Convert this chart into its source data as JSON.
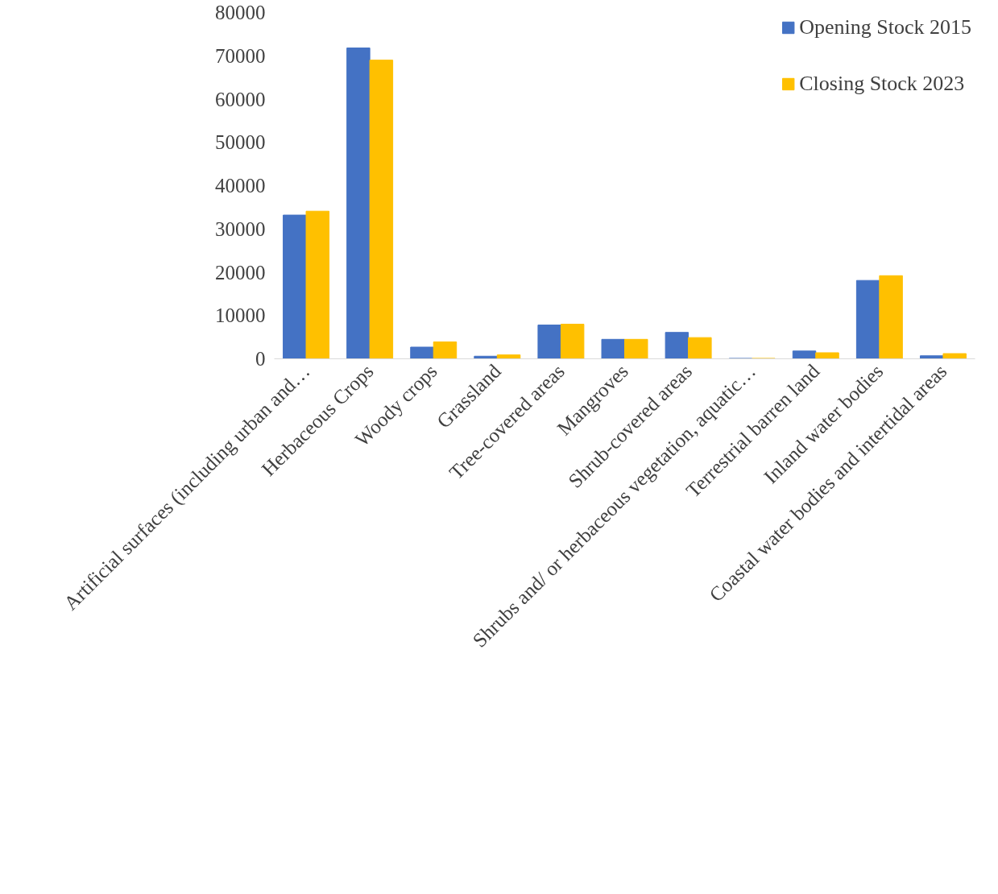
{
  "chart_data": {
    "type": "bar",
    "categories": [
      "Artificial surfaces (including urban and…",
      "Herbaceous Crops",
      "Woody crops",
      "Grassland",
      "Tree-covered areas",
      "Mangroves",
      "Shrub-covered areas",
      "Shrubs and/ or herbaceous vegetation, aquatic…",
      "Terrestrial barren land",
      "Inland water bodies",
      "Coastal water bodies and intertidal areas"
    ],
    "series": [
      {
        "name": "Opening Stock 2015",
        "color": "#4472c4",
        "values": [
          33200,
          71800,
          2700,
          600,
          7800,
          4500,
          6100,
          100,
          1800,
          18100,
          700
        ]
      },
      {
        "name": "Closing Stock 2023",
        "color": "#ffc000",
        "values": [
          34100,
          69000,
          3900,
          900,
          8000,
          4500,
          4900,
          100,
          1400,
          19200,
          1200
        ]
      }
    ],
    "ylim": [
      0,
      80000
    ],
    "yticks": [
      0,
      10000,
      20000,
      30000,
      40000,
      50000,
      60000,
      70000,
      80000
    ],
    "grid": false,
    "legend": "top right"
  }
}
